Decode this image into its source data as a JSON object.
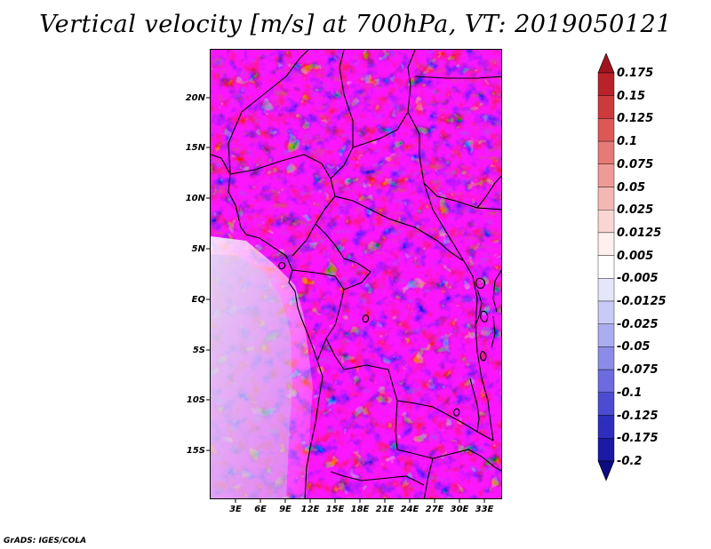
{
  "title": "Vertical velocity [m/s] at 700hPa, VT: 2019050121",
  "footer": "GrADS: IGES/COLA",
  "map": {
    "lat_labels": [
      "20N",
      "15N",
      "10N",
      "5N",
      "EQ",
      "5S",
      "10S",
      "15S"
    ],
    "lon_labels": [
      "3E",
      "6E",
      "9E",
      "12E",
      "15E",
      "18E",
      "21E",
      "24E",
      "27E",
      "30E",
      "33E"
    ]
  },
  "colorbar": {
    "labels": [
      "0.175",
      "0.15",
      "0.125",
      "0.1",
      "0.075",
      "0.05",
      "0.025",
      "0.0125",
      "0.005",
      "-0.005",
      "-0.0125",
      "-0.025",
      "-0.05",
      "-0.075",
      "-0.1",
      "-0.125",
      "-0.175",
      "-0.2"
    ],
    "colors": [
      "#a0141e",
      "#b82228",
      "#cc3a3c",
      "#dc5856",
      "#e67a76",
      "#ee9a96",
      "#f4b8b4",
      "#f9d6d3",
      "#fdf0ee",
      "#ffffff",
      "#e6e6fb",
      "#cacaf6",
      "#acacf0",
      "#8c8ce8",
      "#6c6ce0",
      "#4c4cd2",
      "#2e2ebe",
      "#1a1aa4",
      "#0c0c80"
    ]
  }
}
